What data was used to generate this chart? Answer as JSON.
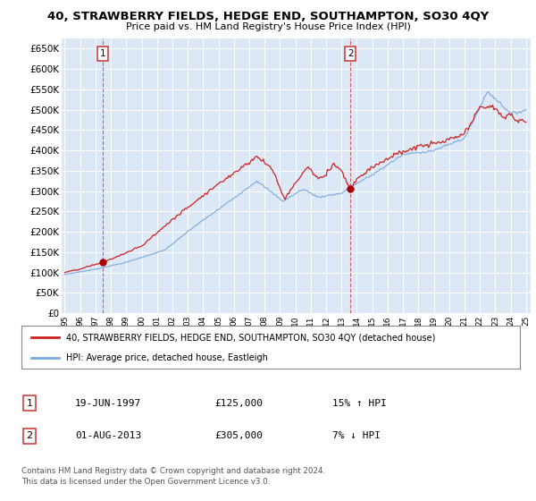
{
  "title": "40, STRAWBERRY FIELDS, HEDGE END, SOUTHAMPTON, SO30 4QY",
  "subtitle": "Price paid vs. HM Land Registry's House Price Index (HPI)",
  "ylim": [
    0,
    675000
  ],
  "yticks": [
    0,
    50000,
    100000,
    150000,
    200000,
    250000,
    300000,
    350000,
    400000,
    450000,
    500000,
    550000,
    600000,
    650000
  ],
  "ytick_labels": [
    "£0",
    "£50K",
    "£100K",
    "£150K",
    "£200K",
    "£250K",
    "£300K",
    "£350K",
    "£400K",
    "£450K",
    "£500K",
    "£550K",
    "£600K",
    "£650K"
  ],
  "background_color": "#dce8f5",
  "grid_color": "#ffffff",
  "sale1_year": 1997.46,
  "sale1_value": 125000,
  "sale2_year": 2013.58,
  "sale2_value": 305000,
  "legend_line1": "40, STRAWBERRY FIELDS, HEDGE END, SOUTHAMPTON, SO30 4QY (detached house)",
  "legend_line2": "HPI: Average price, detached house, Eastleigh",
  "footnote1": "Contains HM Land Registry data © Crown copyright and database right 2024.",
  "footnote2": "This data is licensed under the Open Government Licence v3.0.",
  "table_rows": [
    [
      "1",
      "19-JUN-1997",
      "£125,000",
      "15% ↑ HPI"
    ],
    [
      "2",
      "01-AUG-2013",
      "£305,000",
      "7% ↓ HPI"
    ]
  ],
  "x_start_year": 1995,
  "x_end_year": 2025,
  "red_line_color": "#cc2222",
  "blue_line_color": "#7aaadd",
  "dot_color": "#aa0000"
}
